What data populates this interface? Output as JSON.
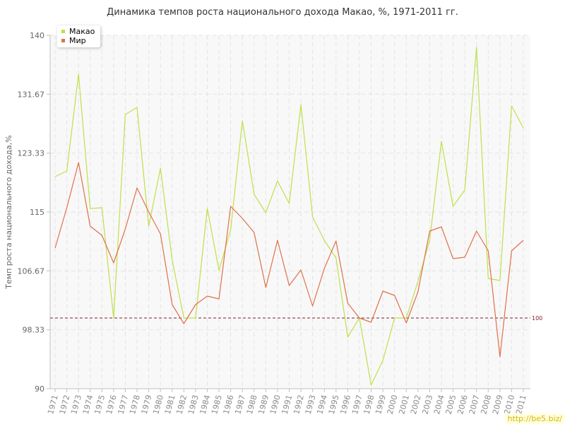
{
  "chart_data": {
    "type": "line",
    "title": "Динамика темпов роста национального дохода Макао, %, 1971-2011 гг.",
    "ylabel": "Темп роста национального дохода,%",
    "xlabel": "",
    "ylim": [
      90,
      140
    ],
    "yticks": [
      "90",
      "98.33",
      "106.67",
      "115",
      "123.33",
      "131.67",
      "140"
    ],
    "ytick_values": [
      90,
      98.33,
      106.67,
      115,
      123.33,
      131.67,
      140
    ],
    "categories": [
      "1971",
      "1972",
      "1973",
      "1974",
      "1975",
      "1976",
      "1977",
      "1978",
      "1979",
      "1980",
      "1981",
      "1982",
      "1983",
      "1984",
      "1985",
      "1986",
      "1987",
      "1988",
      "1989",
      "1990",
      "1991",
      "1992",
      "1993",
      "1994",
      "1995",
      "1996",
      "1997",
      "1998",
      "1999",
      "2000",
      "2001",
      "2002",
      "2003",
      "2004",
      "2005",
      "2006",
      "2007",
      "2008",
      "2009",
      "2010",
      "2011"
    ],
    "grid": true,
    "legend_position": "top-left",
    "reference_line": {
      "value": 100,
      "label": "100",
      "color": "#7a1f2b"
    },
    "series": [
      {
        "name": "Макао",
        "color": "#bfe04a",
        "values": [
          120,
          120.8,
          134.5,
          115.5,
          115.6,
          100,
          128.8,
          129.8,
          113,
          121.2,
          108.2,
          100,
          100,
          115.5,
          106.7,
          112.5,
          127.9,
          117.5,
          114.9,
          119.4,
          116.2,
          130.2,
          114.3,
          111,
          108.5,
          97.3,
          100,
          90.5,
          94,
          100,
          100,
          105.2,
          111,
          125,
          115.8,
          118.1,
          138.3,
          105.6,
          105.3,
          130,
          126.9
        ]
      },
      {
        "name": "Мир",
        "color": "#e0704a",
        "values": [
          109.9,
          115.6,
          122,
          113,
          111.7,
          107.8,
          112.6,
          118.4,
          115,
          111.9,
          101.9,
          99.2,
          101.9,
          103.1,
          102.7,
          115.8,
          114.1,
          112.1,
          104.3,
          111,
          104.6,
          106.8,
          101.7,
          107,
          110.9,
          102.1,
          100,
          99.4,
          103.8,
          103.2,
          99.3,
          103.7,
          112.3,
          112.9,
          108.4,
          108.6,
          112.3,
          109.5,
          94.5,
          109.5,
          111
        ]
      }
    ]
  },
  "legend": {
    "items": [
      {
        "label": "Макао",
        "color": "#bfe04a"
      },
      {
        "label": "Мир",
        "color": "#e0704a"
      }
    ]
  },
  "watermark": "http://be5.biz/"
}
